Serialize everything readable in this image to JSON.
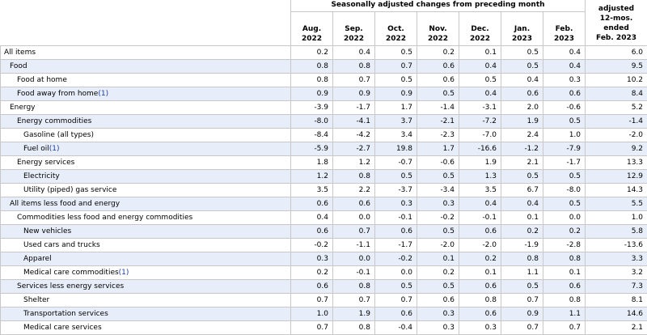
{
  "header": {
    "group_label": "Seasonally adjusted changes from preceding month",
    "last_col_lines": [
      "adjusted",
      "12-mos.",
      "ended",
      "Feb. 2023"
    ],
    "months": [
      {
        "m": "Aug.",
        "y": "2022"
      },
      {
        "m": "Sep.",
        "y": "2022"
      },
      {
        "m": "Oct.",
        "y": "2022"
      },
      {
        "m": "Nov.",
        "y": "2022"
      },
      {
        "m": "Dec.",
        "y": "2022"
      },
      {
        "m": "Jan.",
        "y": "2023"
      },
      {
        "m": "Feb.",
        "y": "2023"
      }
    ]
  },
  "rows": [
    {
      "label": "All items",
      "level": 0,
      "note": "",
      "values": [
        "0.2",
        "0.4",
        "0.5",
        "0.2",
        "0.1",
        "0.5",
        "0.4",
        "6.0"
      ]
    },
    {
      "label": "Food",
      "level": 1,
      "note": "",
      "values": [
        "0.8",
        "0.8",
        "0.7",
        "0.6",
        "0.4",
        "0.5",
        "0.4",
        "9.5"
      ]
    },
    {
      "label": "Food at home",
      "level": 2,
      "note": "",
      "values": [
        "0.8",
        "0.7",
        "0.5",
        "0.6",
        "0.5",
        "0.4",
        "0.3",
        "10.2"
      ]
    },
    {
      "label": "Food away from home",
      "level": 2,
      "note": "(1)",
      "values": [
        "0.9",
        "0.9",
        "0.9",
        "0.5",
        "0.4",
        "0.6",
        "0.6",
        "8.4"
      ]
    },
    {
      "label": "Energy",
      "level": 1,
      "note": "",
      "values": [
        "-3.9",
        "-1.7",
        "1.7",
        "-1.4",
        "-3.1",
        "2.0",
        "-0.6",
        "5.2"
      ]
    },
    {
      "label": "Energy commodities",
      "level": 2,
      "note": "",
      "values": [
        "-8.0",
        "-4.1",
        "3.7",
        "-2.1",
        "-7.2",
        "1.9",
        "0.5",
        "-1.4"
      ]
    },
    {
      "label": "Gasoline (all types)",
      "level": 3,
      "note": "",
      "values": [
        "-8.4",
        "-4.2",
        "3.4",
        "-2.3",
        "-7.0",
        "2.4",
        "1.0",
        "-2.0"
      ]
    },
    {
      "label": "Fuel oil",
      "level": 3,
      "note": "(1)",
      "values": [
        "-5.9",
        "-2.7",
        "19.8",
        "1.7",
        "-16.6",
        "-1.2",
        "-7.9",
        "9.2"
      ]
    },
    {
      "label": "Energy services",
      "level": 2,
      "note": "",
      "values": [
        "1.8",
        "1.2",
        "-0.7",
        "-0.6",
        "1.9",
        "2.1",
        "-1.7",
        "13.3"
      ]
    },
    {
      "label": "Electricity",
      "level": 3,
      "note": "",
      "values": [
        "1.2",
        "0.8",
        "0.5",
        "0.5",
        "1.3",
        "0.5",
        "0.5",
        "12.9"
      ]
    },
    {
      "label": "Utility (piped) gas service",
      "level": 3,
      "note": "",
      "values": [
        "3.5",
        "2.2",
        "-3.7",
        "-3.4",
        "3.5",
        "6.7",
        "-8.0",
        "14.3"
      ]
    },
    {
      "label": "All items less food and energy",
      "level": 1,
      "note": "",
      "values": [
        "0.6",
        "0.6",
        "0.3",
        "0.3",
        "0.4",
        "0.4",
        "0.5",
        "5.5"
      ]
    },
    {
      "label": "Commodities less food and energy commodities",
      "level": 2,
      "note": "",
      "values": [
        "0.4",
        "0.0",
        "-0.1",
        "-0.2",
        "-0.1",
        "0.1",
        "0.0",
        "1.0"
      ]
    },
    {
      "label": "New vehicles",
      "level": 3,
      "note": "",
      "values": [
        "0.6",
        "0.7",
        "0.6",
        "0.5",
        "0.6",
        "0.2",
        "0.2",
        "5.8"
      ]
    },
    {
      "label": "Used cars and trucks",
      "level": 3,
      "note": "",
      "values": [
        "-0.2",
        "-1.1",
        "-1.7",
        "-2.0",
        "-2.0",
        "-1.9",
        "-2.8",
        "-13.6"
      ]
    },
    {
      "label": "Apparel",
      "level": 3,
      "note": "",
      "values": [
        "0.3",
        "0.0",
        "-0.2",
        "0.1",
        "0.2",
        "0.8",
        "0.8",
        "3.3"
      ]
    },
    {
      "label": "Medical care commodities",
      "level": 3,
      "note": "(1)",
      "values": [
        "0.2",
        "-0.1",
        "0.0",
        "0.2",
        "0.1",
        "1.1",
        "0.1",
        "3.2"
      ]
    },
    {
      "label": "Services less energy services",
      "level": 2,
      "note": "",
      "values": [
        "0.6",
        "0.8",
        "0.5",
        "0.5",
        "0.6",
        "0.5",
        "0.6",
        "7.3"
      ]
    },
    {
      "label": "Shelter",
      "level": 3,
      "note": "",
      "values": [
        "0.7",
        "0.7",
        "0.7",
        "0.6",
        "0.8",
        "0.7",
        "0.8",
        "8.1"
      ]
    },
    {
      "label": "Transportation services",
      "level": 3,
      "note": "",
      "values": [
        "1.0",
        "1.9",
        "0.6",
        "0.3",
        "0.6",
        "0.9",
        "1.1",
        "14.6"
      ]
    },
    {
      "label": "Medical care services",
      "level": 3,
      "note": "",
      "values": [
        "0.7",
        "0.8",
        "-0.4",
        "0.3",
        "0.3",
        "0.7",
        "0.7",
        "2.1"
      ]
    }
  ]
}
